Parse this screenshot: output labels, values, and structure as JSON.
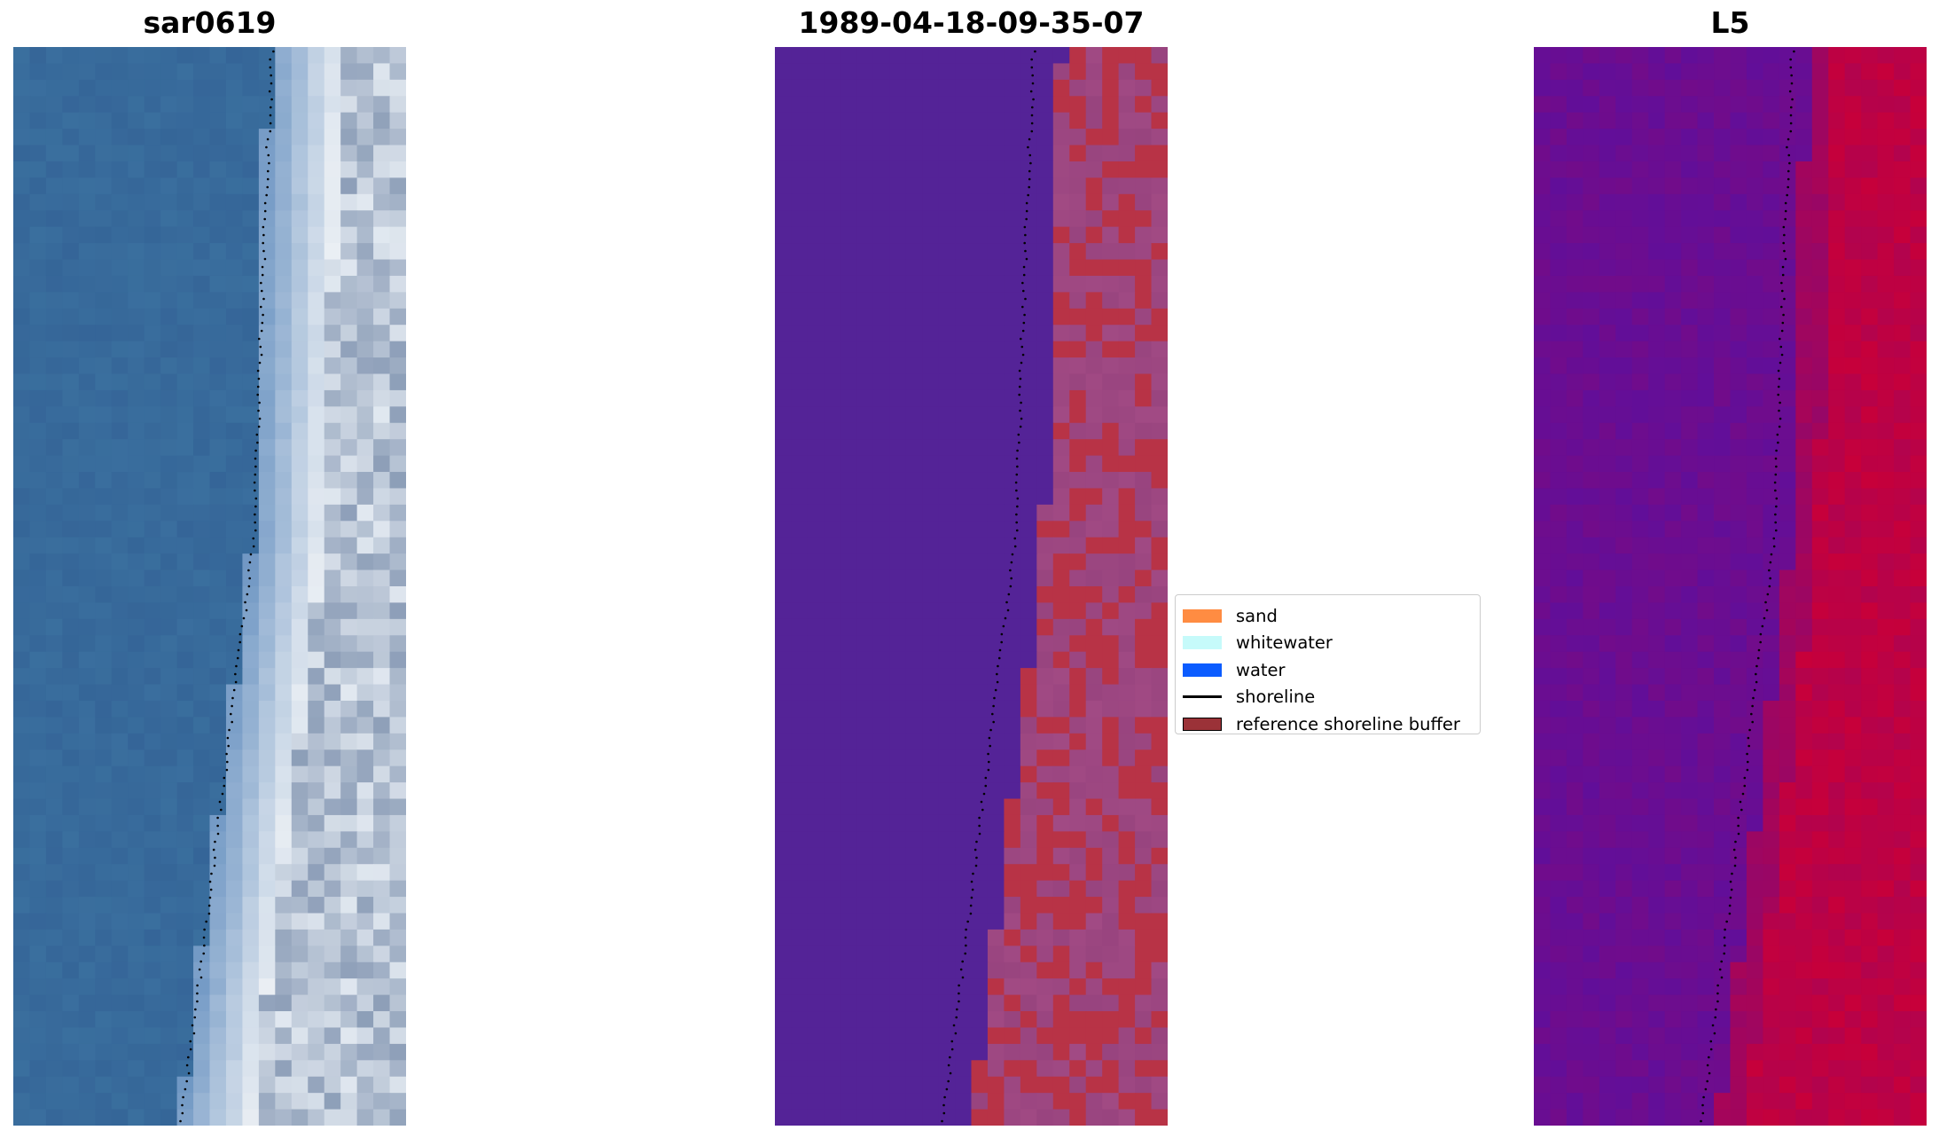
{
  "panels": [
    {
      "title": "sar0619"
    },
    {
      "title": "1989-04-18-09-35-07"
    },
    {
      "title": "L5"
    }
  ],
  "legend": {
    "items": [
      {
        "label": "sand",
        "color": "#ff8c42"
      },
      {
        "label": "whitewater",
        "color": "#c6fafa"
      },
      {
        "label": "water",
        "color": "#0b5cff"
      },
      {
        "label": "shoreline",
        "color": "#000000"
      },
      {
        "label": "reference shoreline buffer",
        "color": "#9b3238"
      }
    ]
  },
  "colors": {
    "water_rgb": "#3a6f9e",
    "surf_rgb": "#dfe6ee",
    "water_class": "#542397",
    "buffer_class": "#b83346",
    "sand_overlay_class": "#a94f88",
    "index_low": "#5c0f9e",
    "index_high": "#c7003a"
  }
}
